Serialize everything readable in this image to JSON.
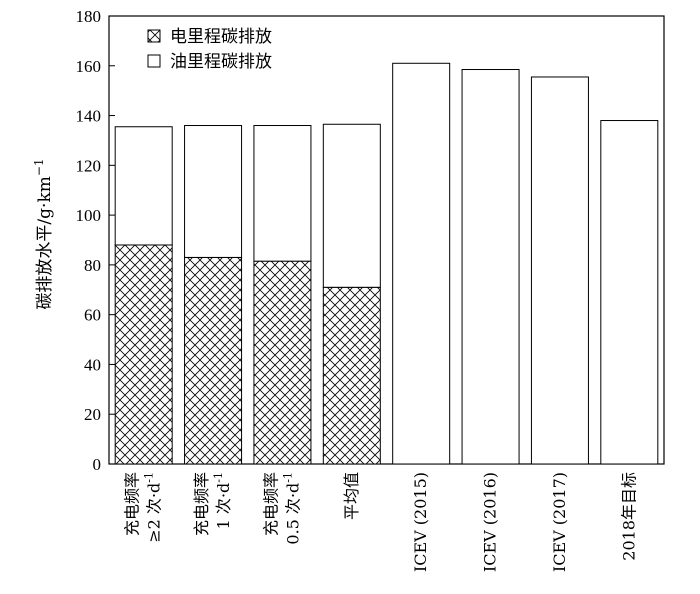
{
  "chart_data": {
    "type": "bar",
    "stacked": true,
    "ylabel": "碳排放水平/g·km",
    "ylabel_superscript": "−1",
    "ylim": [
      0,
      180
    ],
    "yticks": [
      0,
      20,
      40,
      60,
      80,
      100,
      120,
      140,
      160,
      180
    ],
    "categories": [
      [
        "充电频率",
        "≥2 次·d",
        "-1"
      ],
      [
        "充电频率",
        "1 次·d",
        "-1"
      ],
      [
        "充电频率",
        "0.5 次·d",
        "-1"
      ],
      [
        "平均值"
      ],
      [
        "ICEV (2015)"
      ],
      [
        "ICEV (2016)"
      ],
      [
        "ICEV (2017)"
      ],
      [
        "2018年目标"
      ]
    ],
    "series": [
      {
        "name": "电里程碳排放",
        "pattern": "crosshatch",
        "values": [
          88,
          83,
          81.5,
          71,
          0,
          0,
          0,
          0
        ]
      },
      {
        "name": "油里程碳排放",
        "pattern": "none",
        "values": [
          47.5,
          53,
          54.5,
          65.5,
          161,
          158.5,
          155.5,
          138
        ]
      }
    ],
    "legend_position": "top-left",
    "grid": false
  }
}
